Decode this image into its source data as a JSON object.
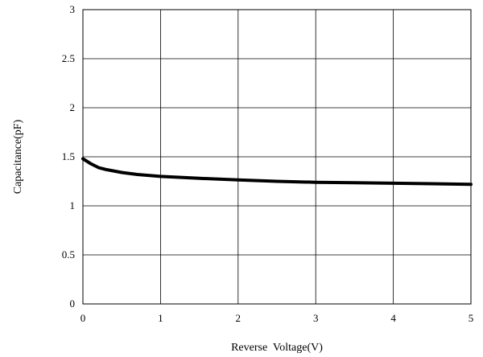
{
  "chart_data": {
    "type": "line",
    "title": "",
    "xlabel": "Reverse  Voltage(V)",
    "ylabel": "Capacitance(pF)",
    "xlim": [
      0,
      5
    ],
    "ylim": [
      0,
      3
    ],
    "x_ticks": [
      "0",
      "1",
      "2",
      "3",
      "4",
      "5"
    ],
    "y_ticks": [
      "0",
      "0.5",
      "1",
      "1.5",
      "2",
      "2.5",
      "3"
    ],
    "grid": true,
    "legend": "none",
    "series": [
      {
        "color": "#000000",
        "x": [
          0,
          0.1,
          0.2,
          0.3,
          0.5,
          0.7,
          1.0,
          1.5,
          2.0,
          2.5,
          3.0,
          3.5,
          4.0,
          4.5,
          5.0
        ],
        "y": [
          1.48,
          1.43,
          1.39,
          1.37,
          1.34,
          1.32,
          1.3,
          1.28,
          1.265,
          1.25,
          1.24,
          1.235,
          1.23,
          1.225,
          1.22
        ]
      }
    ]
  }
}
